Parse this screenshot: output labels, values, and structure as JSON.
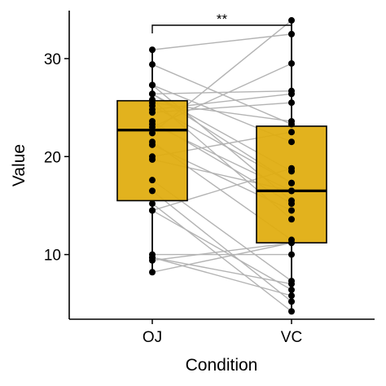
{
  "chart_data": {
    "type": "box",
    "xlabel": "Condition",
    "ylabel": "Value",
    "categories": [
      "OJ",
      "VC"
    ],
    "ylim": [
      3.4,
      34.9
    ],
    "yticks": [
      10,
      20,
      30
    ],
    "grid": false,
    "legend": "none",
    "colors": {
      "box_fill": "#E0AC0D",
      "pair_line": "#B3B3B3",
      "points": "#000000",
      "axis": "#000000"
    },
    "boxes": [
      {
        "category": "OJ",
        "min": 8.2,
        "q1": 15.5,
        "median": 22.7,
        "q3": 25.7,
        "max": 30.9
      },
      {
        "category": "VC",
        "min": 4.2,
        "q1": 11.2,
        "median": 16.5,
        "q3": 23.1,
        "max": 33.9
      }
    ],
    "pairs": [
      [
        15.2,
        4.2
      ],
      [
        21.5,
        11.5
      ],
      [
        17.6,
        7.3
      ],
      [
        9.7,
        5.8
      ],
      [
        14.5,
        6.4
      ],
      [
        10.0,
        10.0
      ],
      [
        8.2,
        11.2
      ],
      [
        9.4,
        11.2
      ],
      [
        16.5,
        5.2
      ],
      [
        9.7,
        7.0
      ],
      [
        19.7,
        16.5
      ],
      [
        23.3,
        16.5
      ],
      [
        23.6,
        15.2
      ],
      [
        26.4,
        17.3
      ],
      [
        20.0,
        22.5
      ],
      [
        25.2,
        17.3
      ],
      [
        25.8,
        13.6
      ],
      [
        21.2,
        14.5
      ],
      [
        14.5,
        18.8
      ],
      [
        27.3,
        15.5
      ],
      [
        25.5,
        23.6
      ],
      [
        26.4,
        18.5
      ],
      [
        22.4,
        33.9
      ],
      [
        24.5,
        25.5
      ],
      [
        24.8,
        26.4
      ],
      [
        30.9,
        32.5
      ],
      [
        26.4,
        26.7
      ],
      [
        27.3,
        21.5
      ],
      [
        29.4,
        23.3
      ],
      [
        23.0,
        29.5
      ]
    ],
    "significance": {
      "label": "**",
      "between": [
        "OJ",
        "VC"
      ]
    }
  }
}
